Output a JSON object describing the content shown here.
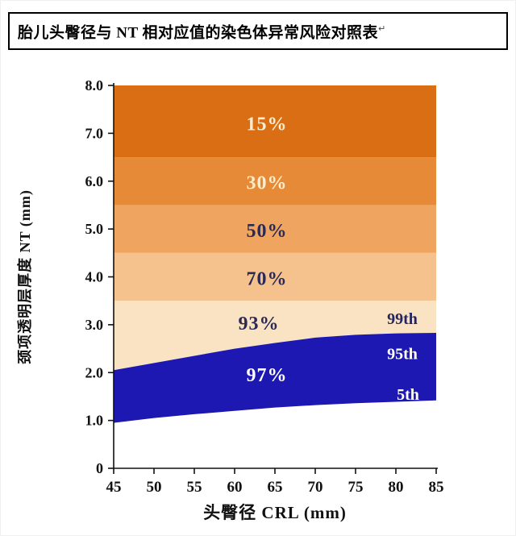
{
  "header": {
    "title": "胎儿头臀径与 NT 相对应值的染色体异常风险对照表",
    "title_mark": "↵"
  },
  "chart_data": {
    "type": "area",
    "title": "胎儿头臀径与 NT 相对应值的染色体异常风险对照表",
    "xlabel": "头臀径 CRL (mm)",
    "ylabel": "颈项透明层厚度 NT (mm)",
    "xlim": [
      45,
      85
    ],
    "ylim": [
      0,
      8
    ],
    "grid": false,
    "legend": "none",
    "xticks": [
      {
        "label": "45",
        "v": 45
      },
      {
        "label": "50",
        "v": 50
      },
      {
        "label": "55",
        "v": 55
      },
      {
        "label": "60",
        "v": 60
      },
      {
        "label": "65",
        "v": 65
      },
      {
        "label": "70",
        "v": 70
      },
      {
        "label": "75",
        "v": 75
      },
      {
        "label": "80",
        "v": 80
      },
      {
        "label": "85",
        "v": 85
      }
    ],
    "yticks": [
      {
        "label": "8.0",
        "v": 8
      },
      {
        "label": "7.0",
        "v": 7
      },
      {
        "label": "6.0",
        "v": 6
      },
      {
        "label": "5.0",
        "v": 5
      },
      {
        "label": "4.0",
        "v": 4
      },
      {
        "label": "3.0",
        "v": 3
      },
      {
        "label": "2.0",
        "v": 2
      },
      {
        "label": "1.0",
        "v": 1
      },
      {
        "label": "0",
        "v": 0
      }
    ],
    "bands": [
      {
        "label": "15%",
        "y_from": 6.5,
        "y_to": 8.0,
        "fill": "#d96e15",
        "label_color": "#fbeccc",
        "label_x": 64,
        "label_y": 7.2
      },
      {
        "label": "30%",
        "y_from": 5.5,
        "y_to": 6.5,
        "fill": "#e68a38",
        "label_color": "#fbeccc",
        "label_x": 64,
        "label_y": 5.97
      },
      {
        "label": "50%",
        "y_from": 4.5,
        "y_to": 5.5,
        "fill": "#efa55f",
        "label_color": "#2a2a55",
        "label_x": 64,
        "label_y": 4.97
      },
      {
        "label": "70%",
        "y_from": 3.5,
        "y_to": 4.5,
        "fill": "#f5c28e",
        "label_color": "#2a2a55",
        "label_x": 64,
        "label_y": 3.97
      },
      {
        "label": "93%",
        "y_from": "p95",
        "y_to": 3.5,
        "fill": "#fae3c3",
        "label_color": "#2a2a55",
        "label_x": 63,
        "label_y": 3.03
      }
    ],
    "blue_region": {
      "label": "97%",
      "fill": "#1d18b2",
      "label_color": "#ffffff",
      "label_x": 64,
      "label_y": 1.95,
      "upper_curve": "p95",
      "lower_curve": "p5"
    },
    "curves": {
      "p95": {
        "name": "95th percentile NT",
        "x": [
          45,
          50,
          55,
          60,
          65,
          70,
          75,
          80,
          85
        ],
        "y": [
          2.05,
          2.2,
          2.35,
          2.5,
          2.62,
          2.73,
          2.79,
          2.82,
          2.83
        ]
      },
      "p5": {
        "name": "5th percentile NT",
        "x": [
          45,
          50,
          55,
          60,
          65,
          70,
          75,
          80,
          85
        ],
        "y": [
          0.95,
          1.05,
          1.13,
          1.2,
          1.27,
          1.32,
          1.36,
          1.39,
          1.42
        ]
      }
    },
    "annotations": [
      {
        "text": "99th",
        "x": 80.8,
        "y": 3.13,
        "color": "#26265e"
      },
      {
        "text": "95th",
        "x": 80.8,
        "y": 2.4,
        "color": "#ffffff"
      },
      {
        "text": "5th",
        "x": 81.5,
        "y": 1.55,
        "color": "#ffffff"
      }
    ],
    "colors": {
      "axis": "#111111",
      "tick_text": "#111111"
    }
  }
}
